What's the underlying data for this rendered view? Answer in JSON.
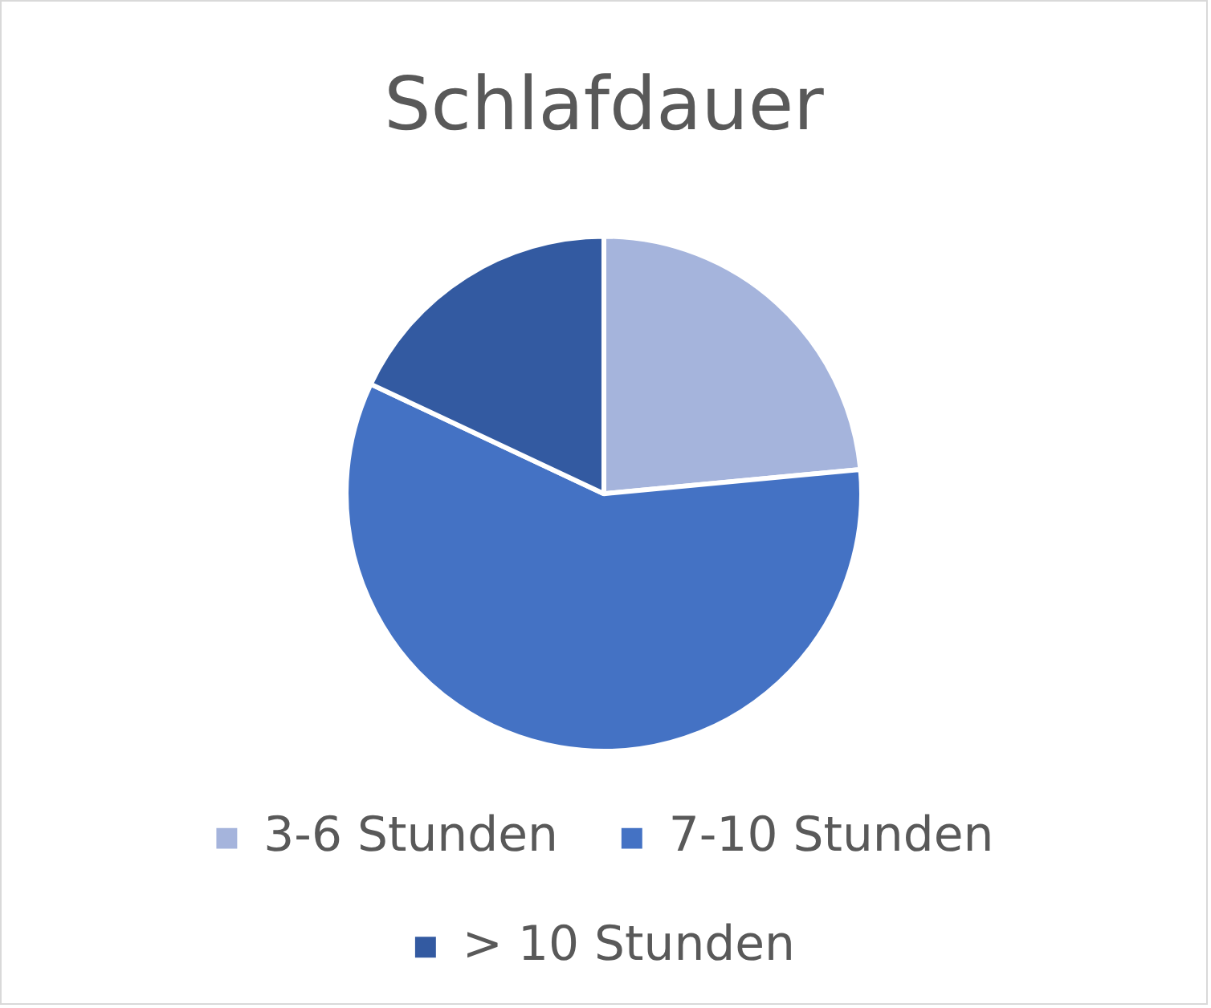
{
  "chart_data": {
    "type": "pie",
    "title": "Schlafdauer",
    "categories": [
      "3-6 Stunden",
      "7-10 Stunden",
      "> 10 Stunden"
    ],
    "values": [
      23.5,
      58.5,
      18
    ],
    "colors": [
      "#a5b4dc",
      "#4472c4",
      "#335aa1"
    ],
    "legend": "bottom"
  }
}
